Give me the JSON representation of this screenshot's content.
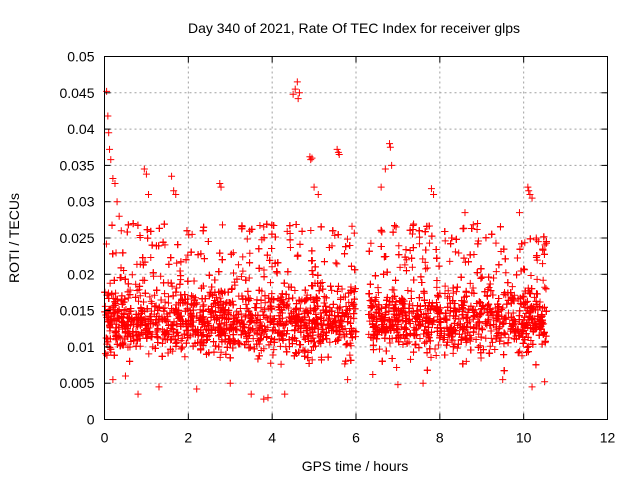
{
  "chart_data": {
    "type": "scatter",
    "title": "Day 340 of 2021, Rate Of TEC Index for receiver glps",
    "xlabel": "GPS time / hours",
    "ylabel": "ROTI / TECUs",
    "xlim": [
      0,
      12
    ],
    "ylim": [
      0,
      0.05
    ],
    "x_ticks": [
      "0",
      "2",
      "4",
      "6",
      "8",
      "10",
      "12"
    ],
    "y_ticks": [
      "0",
      "0.005",
      "0.01",
      "0.015",
      "0.02",
      "0.025",
      "0.03",
      "0.035",
      "0.04",
      "0.045",
      "0.05"
    ],
    "grid": true,
    "marker": "+",
    "series": [
      {
        "color": "#ff0000",
        "points": [
          [
            0.05,
            0.0452
          ],
          [
            0.08,
            0.0418
          ],
          [
            0.1,
            0.0395
          ],
          [
            0.12,
            0.0372
          ],
          [
            0.15,
            0.0358
          ],
          [
            0.2,
            0.0332
          ],
          [
            0.25,
            0.0325
          ],
          [
            0.3,
            0.03
          ],
          [
            0.35,
            0.028
          ],
          [
            0.4,
            0.026
          ],
          [
            0.95,
            0.0345
          ],
          [
            1.0,
            0.0338
          ],
          [
            1.05,
            0.031
          ],
          [
            1.6,
            0.0335
          ],
          [
            1.65,
            0.0315
          ],
          [
            1.7,
            0.031
          ],
          [
            2.75,
            0.0325
          ],
          [
            2.78,
            0.032
          ],
          [
            4.5,
            0.0448
          ],
          [
            4.55,
            0.0455
          ],
          [
            4.6,
            0.0465
          ],
          [
            4.62,
            0.0442
          ],
          [
            4.65,
            0.045
          ],
          [
            4.9,
            0.0362
          ],
          [
            4.92,
            0.0358
          ],
          [
            4.95,
            0.036
          ],
          [
            5.0,
            0.032
          ],
          [
            5.1,
            0.031
          ],
          [
            5.55,
            0.0372
          ],
          [
            5.58,
            0.0368
          ],
          [
            5.6,
            0.0365
          ],
          [
            6.6,
            0.032
          ],
          [
            6.7,
            0.0345
          ],
          [
            6.8,
            0.038
          ],
          [
            6.82,
            0.0375
          ],
          [
            6.85,
            0.035
          ],
          [
            7.8,
            0.0318
          ],
          [
            7.85,
            0.031
          ],
          [
            8.6,
            0.0285
          ],
          [
            8.9,
            0.027
          ],
          [
            9.9,
            0.0285
          ],
          [
            10.1,
            0.032
          ],
          [
            10.12,
            0.0315
          ],
          [
            10.15,
            0.031
          ],
          [
            10.2,
            0.0305
          ],
          [
            10.3,
            0.025
          ],
          [
            10.35,
            0.0245
          ],
          [
            0.8,
            0.0035
          ],
          [
            3.8,
            0.0028
          ],
          [
            3.9,
            0.003
          ],
          [
            0.5,
            0.006
          ],
          [
            0.2,
            0.0055
          ],
          [
            1.3,
            0.0045
          ],
          [
            2.2,
            0.0042
          ],
          [
            3.0,
            0.005
          ],
          [
            3.5,
            0.0035
          ],
          [
            4.3,
            0.0035
          ],
          [
            5.8,
            0.0055
          ],
          [
            6.4,
            0.0062
          ],
          [
            7.0,
            0.0048
          ],
          [
            7.6,
            0.005
          ],
          [
            9.5,
            0.0055
          ],
          [
            10.2,
            0.0045
          ],
          [
            10.5,
            0.0052
          ]
        ]
      }
    ]
  }
}
